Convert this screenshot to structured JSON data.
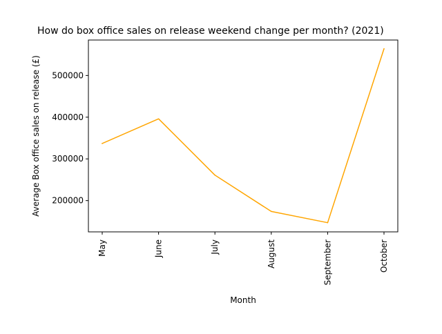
{
  "chart_data": {
    "type": "line",
    "title": "How do box office sales on release weekend change per month? (2021)",
    "xlabel": "Month",
    "ylabel": "Average Box office sales on release (£)",
    "categories": [
      "May",
      "June",
      "July",
      "August",
      "September",
      "October"
    ],
    "series": [
      {
        "values": [
          337000,
          396000,
          261000,
          174000,
          147000,
          564000
        ],
        "color": "#FFA500"
      }
    ],
    "yticks": [
      200000,
      300000,
      400000,
      500000
    ],
    "ylim": [
      125000,
      585000
    ],
    "grid": false,
    "legend": "none"
  }
}
